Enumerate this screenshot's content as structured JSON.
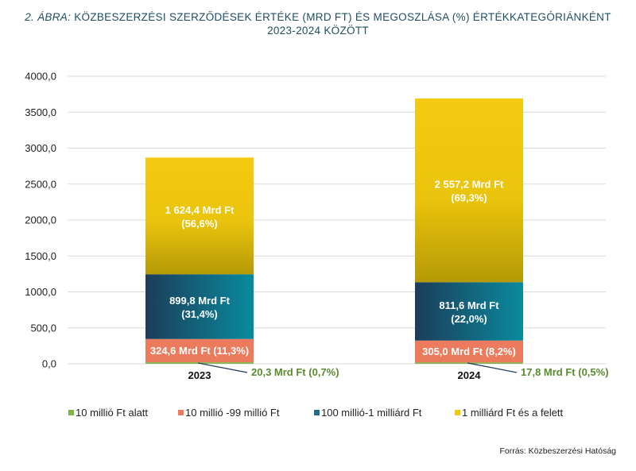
{
  "title": {
    "prefix": "2. ÁBRA:",
    "line1_rest": "KÖZBESZERZÉSI SZERZŐDÉSEK ÉRTÉKE (MRD FT) ÉS MEGOSZLÁSA (%) ÉRTÉKKATEGÓRIÁNKÉNT",
    "line2": "2023-2024 KÖZÖTT"
  },
  "source": "Forrás: Közbeszerzési  Hatóság",
  "chart_data": {
    "type": "bar",
    "stacked": true,
    "categories": [
      "2023",
      "2024"
    ],
    "ylim": [
      0,
      4000
    ],
    "yticks": [
      "0,0",
      "500,0",
      "1000,0",
      "1500,0",
      "2000,0",
      "2500,0",
      "3000,0",
      "3500,0",
      "4000,0"
    ],
    "grid": true,
    "legend_position": "bottom",
    "series": [
      {
        "name": "10 millió Ft alatt",
        "color": "#7ab648",
        "values": [
          20.3,
          17.8
        ],
        "labels": [
          "20,3 Mrd Ft (0,7%)",
          "17,8 Mrd Ft (0,5%)"
        ]
      },
      {
        "name": "10 millió -99 millió Ft",
        "color": "#ec7a5c",
        "values": [
          324.6,
          305.0
        ],
        "labels": [
          "324,6 Mrd Ft (11,3%)",
          "305,0 Mrd Ft (8,2%)"
        ]
      },
      {
        "name": "100 millió-1 milliárd Ft",
        "color": "#1d6f8a",
        "values": [
          899.8,
          811.6
        ],
        "labels": [
          [
            "899,8 Mrd Ft",
            "(31,4%)"
          ],
          [
            "811,6 Mrd Ft",
            "(22,0%)"
          ]
        ]
      },
      {
        "name": "1 milliárd Ft és a felett",
        "color": "#f0c80e",
        "values": [
          1624.4,
          2557.2
        ],
        "labels": [
          [
            "1 624,4 Mrd Ft",
            "(56,6%)"
          ],
          [
            "2 557,2 Mrd Ft",
            "(69,3%)"
          ]
        ]
      }
    ]
  }
}
